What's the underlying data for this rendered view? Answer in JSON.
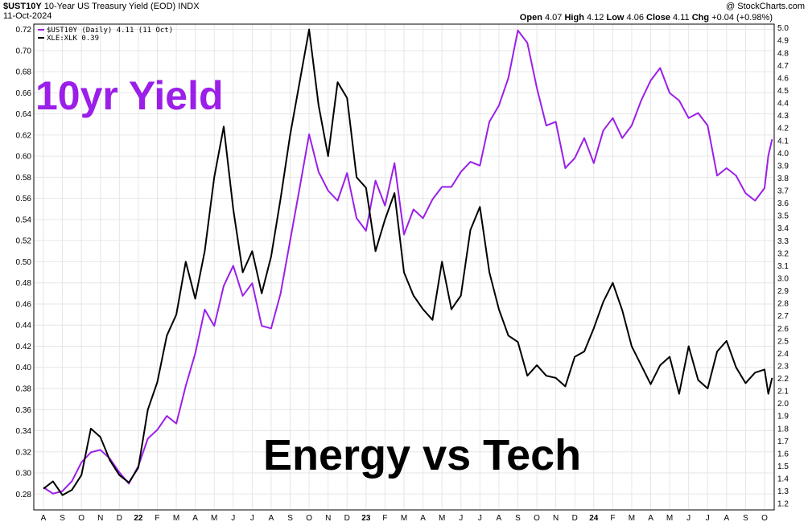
{
  "header": {
    "ticker": "$UST10Y",
    "description": "10-Year US Treasury Yield (EOD)",
    "exchange": "INDX",
    "date": "11-Oct-2024",
    "credit": "@ StockCharts.com",
    "open_label": "Open",
    "open": "4.07",
    "high_label": "High",
    "high": "4.12",
    "low_label": "Low",
    "low": "4.06",
    "close_label": "Close",
    "close": "4.11",
    "chg_label": "Chg",
    "chg": "+0.04 (+0.98%)"
  },
  "legend": {
    "series1": "$UST10Y (Daily) 4.11 (11 Oct)",
    "series2": "XLE:XLK 0.39"
  },
  "annotations": {
    "yield": "10yr Yield",
    "main": "Energy vs Tech"
  },
  "colors": {
    "ust10y": "#9b1fe8",
    "ratio": "#000000",
    "grid": "#e6e6e6"
  },
  "chart_data": {
    "type": "line",
    "x_tick_labels": [
      "A",
      "S",
      "O",
      "N",
      "D",
      "22",
      "F",
      "M",
      "A",
      "M",
      "J",
      "J",
      "A",
      "S",
      "O",
      "N",
      "D",
      "23",
      "F",
      "M",
      "A",
      "M",
      "J",
      "J",
      "A",
      "S",
      "O",
      "N",
      "D",
      "24",
      "F",
      "M",
      "A",
      "M",
      "J",
      "J",
      "A",
      "S",
      "O"
    ],
    "x_year_labels": [
      "22",
      "23",
      "24"
    ],
    "left_axis": {
      "ticks": [
        "0.28",
        "0.30",
        "0.32",
        "0.34",
        "0.36",
        "0.38",
        "0.40",
        "0.42",
        "0.44",
        "0.46",
        "0.48",
        "0.50",
        "0.52",
        "0.54",
        "0.56",
        "0.58",
        "0.60",
        "0.62",
        "0.64",
        "0.66",
        "0.68",
        "0.70",
        "0.72"
      ],
      "range": [
        0.265,
        0.725
      ]
    },
    "right_axis": {
      "ticks": [
        "1.2",
        "1.3",
        "1.4",
        "1.5",
        "1.6",
        "1.7",
        "1.8",
        "1.9",
        "2.0",
        "2.1",
        "2.2",
        "2.3",
        "2.4",
        "2.5",
        "2.6",
        "2.7",
        "2.8",
        "2.9",
        "3.0",
        "3.1",
        "3.2",
        "3.3",
        "3.4",
        "3.5",
        "3.6",
        "3.7",
        "3.8",
        "3.9",
        "4.0",
        "4.1",
        "4.2",
        "4.3",
        "4.4",
        "4.5",
        "4.6",
        "4.7",
        "4.8",
        "4.9",
        "5.0"
      ],
      "range": [
        1.15,
        5.03
      ]
    },
    "grid": true,
    "legend_position": "top-left",
    "series": [
      {
        "name": "$UST10Y (Daily)",
        "axis": "right",
        "x": [
          0,
          0.5,
          1,
          1.5,
          2,
          2.5,
          3,
          3.5,
          4,
          4.5,
          5,
          5.5,
          6,
          6.5,
          7,
          7.5,
          8,
          8.5,
          9,
          9.5,
          10,
          10.5,
          11,
          11.5,
          12,
          12.5,
          13,
          13.5,
          14,
          14.5,
          15,
          15.5,
          16,
          16.5,
          17,
          17.5,
          18,
          18.5,
          19,
          19.5,
          20,
          20.5,
          21,
          21.5,
          22,
          22.5,
          23,
          23.5,
          24,
          24.5,
          25,
          25.5,
          26,
          26.5,
          27,
          27.5,
          28,
          28.5,
          29,
          29.5,
          30,
          30.5,
          31,
          31.5,
          32,
          32.5,
          33,
          33.5,
          34,
          34.5,
          35,
          35.5,
          36,
          36.5,
          37,
          37.5,
          38,
          38.2,
          38.4
        ],
        "values": [
          1.33,
          1.28,
          1.3,
          1.38,
          1.53,
          1.61,
          1.63,
          1.56,
          1.45,
          1.36,
          1.5,
          1.72,
          1.79,
          1.9,
          1.84,
          2.14,
          2.4,
          2.75,
          2.62,
          2.94,
          3.1,
          2.86,
          2.96,
          2.62,
          2.6,
          2.88,
          3.3,
          3.72,
          4.15,
          3.85,
          3.7,
          3.62,
          3.84,
          3.48,
          3.38,
          3.78,
          3.58,
          3.92,
          3.35,
          3.55,
          3.48,
          3.63,
          3.73,
          3.73,
          3.85,
          3.93,
          3.9,
          4.25,
          4.38,
          4.6,
          4.98,
          4.88,
          4.52,
          4.22,
          4.25,
          3.88,
          3.96,
          4.12,
          3.92,
          4.18,
          4.28,
          4.12,
          4.22,
          4.42,
          4.58,
          4.68,
          4.48,
          4.42,
          4.28,
          4.32,
          4.22,
          3.82,
          3.88,
          3.82,
          3.68,
          3.62,
          3.72,
          3.98,
          4.11
        ]
      },
      {
        "name": "XLE:XLK",
        "axis": "left",
        "x": [
          0,
          0.5,
          1,
          1.5,
          2,
          2.5,
          3,
          3.5,
          4,
          4.5,
          5,
          5.5,
          6,
          6.5,
          7,
          7.5,
          8,
          8.5,
          9,
          9.5,
          10,
          10.5,
          11,
          11.5,
          12,
          12.5,
          13,
          13.5,
          14,
          14.5,
          15,
          15.5,
          16,
          16.5,
          17,
          17.5,
          18,
          18.5,
          19,
          19.5,
          20,
          20.5,
          21,
          21.5,
          22,
          22.5,
          23,
          23.5,
          24,
          24.5,
          25,
          25.5,
          26,
          26.5,
          27,
          27.5,
          28,
          28.5,
          29,
          29.5,
          30,
          30.5,
          31,
          31.5,
          32,
          32.5,
          33,
          33.5,
          34,
          34.5,
          35,
          35.5,
          36,
          36.5,
          37,
          37.5,
          38,
          38.2,
          38.4
        ],
        "values": [
          0.285,
          0.292,
          0.279,
          0.284,
          0.298,
          0.342,
          0.334,
          0.312,
          0.298,
          0.291,
          0.305,
          0.36,
          0.386,
          0.43,
          0.45,
          0.5,
          0.465,
          0.51,
          0.58,
          0.628,
          0.55,
          0.49,
          0.51,
          0.47,
          0.505,
          0.56,
          0.62,
          0.67,
          0.72,
          0.648,
          0.6,
          0.67,
          0.655,
          0.58,
          0.57,
          0.51,
          0.54,
          0.565,
          0.49,
          0.468,
          0.455,
          0.445,
          0.5,
          0.455,
          0.468,
          0.53,
          0.552,
          0.49,
          0.455,
          0.43,
          0.424,
          0.392,
          0.402,
          0.392,
          0.39,
          0.382,
          0.41,
          0.415,
          0.437,
          0.462,
          0.48,
          0.454,
          0.42,
          0.402,
          0.384,
          0.402,
          0.41,
          0.375,
          0.42,
          0.388,
          0.38,
          0.415,
          0.425,
          0.4,
          0.385,
          0.395,
          0.398,
          0.375,
          0.39
        ]
      }
    ]
  }
}
